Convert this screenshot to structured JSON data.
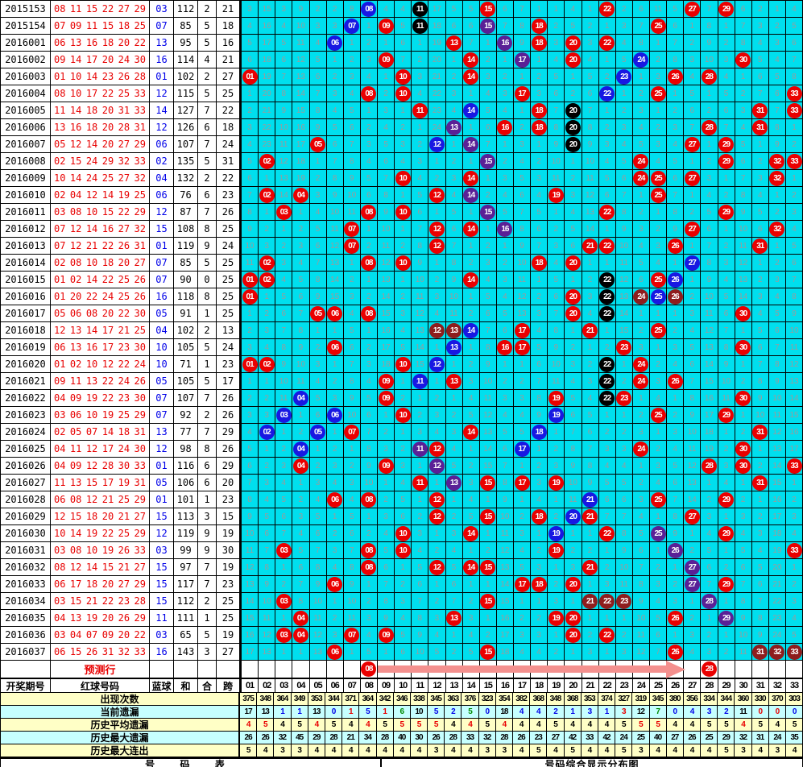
{
  "left_header": {
    "period": "开奖期号",
    "reds": "红球号码",
    "blue": "蓝球",
    "sum": "和",
    "he": "合",
    "span": "跨"
  },
  "columns": [
    "01",
    "02",
    "03",
    "04",
    "05",
    "06",
    "07",
    "08",
    "09",
    "10",
    "11",
    "12",
    "13",
    "14",
    "15",
    "16",
    "17",
    "18",
    "19",
    "20",
    "21",
    "22",
    "23",
    "24",
    "25",
    "26",
    "27",
    "28",
    "29",
    "30",
    "31",
    "32",
    "33"
  ],
  "ball_colors": {
    "red": "#ea0000",
    "blue": "#1818e2",
    "black": "#000000",
    "purple": "#5a2096",
    "maroon": "#8e1d1d"
  },
  "grid_bg": "#00dfee",
  "seed_omissions": [
    3,
    15,
    3,
    9,
    2,
    2,
    8,
    0,
    4,
    4,
    0,
    17,
    5,
    5,
    0,
    6,
    7,
    1,
    1,
    4,
    1,
    0,
    2,
    6,
    11,
    5,
    0,
    7,
    0,
    6,
    2,
    1,
    4
  ],
  "rows": [
    {
      "p": "2015153",
      "r": [
        "08",
        "11",
        "15",
        "22",
        "27",
        "29"
      ],
      "b": "03",
      "s": "112",
      "h": "2",
      "k": "21",
      "sp": {
        "08": "blue",
        "11": "black"
      }
    },
    {
      "p": "2015154",
      "r": [
        "07",
        "09",
        "11",
        "15",
        "18",
        "25"
      ],
      "b": "07",
      "s": "85",
      "h": "5",
      "k": "18",
      "sp": {
        "07": "blue",
        "11": "black",
        "15": "purple"
      }
    },
    {
      "p": "2016001",
      "r": [
        "06",
        "13",
        "16",
        "18",
        "20",
        "22"
      ],
      "b": "13",
      "s": "95",
      "h": "5",
      "k": "16",
      "sp": {
        "06": "blue",
        "16": "purple"
      }
    },
    {
      "p": "2016002",
      "r": [
        "09",
        "14",
        "17",
        "20",
        "24",
        "30"
      ],
      "b": "16",
      "s": "114",
      "h": "4",
      "k": "21",
      "sp": {
        "17": "purple",
        "24": "blue"
      }
    },
    {
      "p": "2016003",
      "r": [
        "01",
        "10",
        "14",
        "23",
        "26",
        "28"
      ],
      "b": "01",
      "s": "102",
      "h": "2",
      "k": "27",
      "sp": {
        "23": "blue"
      }
    },
    {
      "p": "2016004",
      "r": [
        "08",
        "10",
        "17",
        "22",
        "25",
        "33"
      ],
      "b": "12",
      "s": "115",
      "h": "5",
      "k": "25",
      "sp": {
        "22": "blue"
      }
    },
    {
      "p": "2016005",
      "r": [
        "11",
        "14",
        "18",
        "20",
        "31",
        "33"
      ],
      "b": "14",
      "s": "127",
      "h": "7",
      "k": "22",
      "sp": {
        "14": "blue",
        "20": "black"
      }
    },
    {
      "p": "2016006",
      "r": [
        "13",
        "16",
        "18",
        "20",
        "28",
        "31"
      ],
      "b": "12",
      "s": "126",
      "h": "6",
      "k": "18",
      "sp": {
        "13": "purple",
        "20": "black"
      }
    },
    {
      "p": "2016007",
      "r": [
        "05",
        "12",
        "14",
        "20",
        "27",
        "29"
      ],
      "b": "06",
      "s": "107",
      "h": "7",
      "k": "24",
      "sp": {
        "12": "blue",
        "14": "purple",
        "20": "black"
      }
    },
    {
      "p": "2016008",
      "r": [
        "02",
        "15",
        "24",
        "29",
        "32",
        "33"
      ],
      "b": "02",
      "s": "135",
      "h": "5",
      "k": "31",
      "sp": {
        "15": "purple"
      }
    },
    {
      "p": "2016009",
      "r": [
        "10",
        "14",
        "24",
        "25",
        "27",
        "32"
      ],
      "b": "04",
      "s": "132",
      "h": "2",
      "k": "22",
      "sp": {}
    },
    {
      "p": "2016010",
      "r": [
        "02",
        "04",
        "12",
        "14",
        "19",
        "25"
      ],
      "b": "06",
      "s": "76",
      "h": "6",
      "k": "23",
      "sp": {
        "14": "purple"
      }
    },
    {
      "p": "2016011",
      "r": [
        "03",
        "08",
        "10",
        "15",
        "22",
        "29"
      ],
      "b": "12",
      "s": "87",
      "h": "7",
      "k": "26",
      "sp": {
        "15": "purple"
      }
    },
    {
      "p": "2016012",
      "r": [
        "07",
        "12",
        "14",
        "16",
        "27",
        "32"
      ],
      "b": "15",
      "s": "108",
      "h": "8",
      "k": "25",
      "sp": {
        "16": "purple"
      }
    },
    {
      "p": "2016013",
      "r": [
        "07",
        "12",
        "21",
        "22",
        "26",
        "31"
      ],
      "b": "01",
      "s": "119",
      "h": "9",
      "k": "24",
      "sp": {}
    },
    {
      "p": "2016014",
      "r": [
        "02",
        "08",
        "10",
        "18",
        "20",
        "27"
      ],
      "b": "07",
      "s": "85",
      "h": "5",
      "k": "25",
      "sp": {
        "27": "blue"
      }
    },
    {
      "p": "2016015",
      "r": [
        "01",
        "02",
        "14",
        "22",
        "25",
        "26"
      ],
      "b": "07",
      "s": "90",
      "h": "0",
      "k": "25",
      "sp": {
        "22": "black",
        "26": "blue"
      }
    },
    {
      "p": "2016016",
      "r": [
        "01",
        "20",
        "22",
        "24",
        "25",
        "26"
      ],
      "b": "16",
      "s": "118",
      "h": "8",
      "k": "25",
      "sp": {
        "22": "black",
        "24": "maroon",
        "25": "blue",
        "26": "maroon"
      }
    },
    {
      "p": "2016017",
      "r": [
        "05",
        "06",
        "08",
        "20",
        "22",
        "30"
      ],
      "b": "05",
      "s": "91",
      "h": "1",
      "k": "25",
      "sp": {
        "22": "black"
      }
    },
    {
      "p": "2016018",
      "r": [
        "12",
        "13",
        "14",
        "17",
        "21",
        "25"
      ],
      "b": "04",
      "s": "102",
      "h": "2",
      "k": "13",
      "sp": {
        "12": "maroon",
        "13": "maroon",
        "14": "blue"
      }
    },
    {
      "p": "2016019",
      "r": [
        "06",
        "13",
        "16",
        "17",
        "23",
        "30"
      ],
      "b": "10",
      "s": "105",
      "h": "5",
      "k": "24",
      "sp": {
        "13": "blue"
      }
    },
    {
      "p": "2016020",
      "r": [
        "01",
        "02",
        "10",
        "12",
        "22",
        "24"
      ],
      "b": "10",
      "s": "71",
      "h": "1",
      "k": "23",
      "sp": {
        "12": "blue",
        "22": "black"
      }
    },
    {
      "p": "2016021",
      "r": [
        "09",
        "11",
        "13",
        "22",
        "24",
        "26"
      ],
      "b": "05",
      "s": "105",
      "h": "5",
      "k": "17",
      "sp": {
        "11": "blue",
        "22": "black"
      }
    },
    {
      "p": "2016022",
      "r": [
        "04",
        "09",
        "19",
        "22",
        "23",
        "30"
      ],
      "b": "07",
      "s": "107",
      "h": "7",
      "k": "26",
      "sp": {
        "04": "blue",
        "22": "black"
      }
    },
    {
      "p": "2016023",
      "r": [
        "03",
        "06",
        "10",
        "19",
        "25",
        "29"
      ],
      "b": "07",
      "s": "92",
      "h": "2",
      "k": "26",
      "sp": {
        "03": "blue",
        "06": "blue",
        "19": "blue"
      }
    },
    {
      "p": "2016024",
      "r": [
        "02",
        "05",
        "07",
        "14",
        "18",
        "31"
      ],
      "b": "13",
      "s": "77",
      "h": "7",
      "k": "29",
      "sp": {
        "02": "blue",
        "05": "blue",
        "18": "blue"
      }
    },
    {
      "p": "2016025",
      "r": [
        "04",
        "11",
        "12",
        "17",
        "24",
        "30"
      ],
      "b": "12",
      "s": "98",
      "h": "8",
      "k": "26",
      "sp": {
        "04": "blue",
        "11": "purple",
        "17": "blue"
      }
    },
    {
      "p": "2016026",
      "r": [
        "04",
        "09",
        "12",
        "28",
        "30",
        "33"
      ],
      "b": "01",
      "s": "116",
      "h": "6",
      "k": "29",
      "sp": {
        "12": "purple"
      }
    },
    {
      "p": "2016027",
      "r": [
        "11",
        "13",
        "15",
        "17",
        "19",
        "31"
      ],
      "b": "05",
      "s": "106",
      "h": "6",
      "k": "20",
      "sp": {
        "13": "purple"
      }
    },
    {
      "p": "2016028",
      "r": [
        "06",
        "08",
        "12",
        "21",
        "25",
        "29"
      ],
      "b": "01",
      "s": "101",
      "h": "1",
      "k": "23",
      "sp": {
        "21": "blue"
      }
    },
    {
      "p": "2016029",
      "r": [
        "12",
        "15",
        "18",
        "20",
        "21",
        "27"
      ],
      "b": "15",
      "s": "113",
      "h": "3",
      "k": "15",
      "sp": {
        "20": "blue"
      }
    },
    {
      "p": "2016030",
      "r": [
        "10",
        "14",
        "19",
        "22",
        "25",
        "29"
      ],
      "b": "12",
      "s": "119",
      "h": "9",
      "k": "19",
      "sp": {
        "19": "blue",
        "25": "purple"
      }
    },
    {
      "p": "2016031",
      "r": [
        "03",
        "08",
        "10",
        "19",
        "26",
        "33"
      ],
      "b": "03",
      "s": "99",
      "h": "9",
      "k": "30",
      "sp": {
        "26": "purple"
      }
    },
    {
      "p": "2016032",
      "r": [
        "08",
        "12",
        "14",
        "15",
        "21",
        "27"
      ],
      "b": "15",
      "s": "97",
      "h": "7",
      "k": "19",
      "sp": {
        "27": "purple"
      }
    },
    {
      "p": "2016033",
      "r": [
        "06",
        "17",
        "18",
        "20",
        "27",
        "29"
      ],
      "b": "15",
      "s": "117",
      "h": "7",
      "k": "23",
      "sp": {
        "27": "purple"
      }
    },
    {
      "p": "2016034",
      "r": [
        "03",
        "15",
        "21",
        "22",
        "23",
        "28"
      ],
      "b": "15",
      "s": "112",
      "h": "2",
      "k": "25",
      "sp": {
        "21": "maroon",
        "22": "maroon",
        "23": "maroon",
        "28": "purple"
      }
    },
    {
      "p": "2016035",
      "r": [
        "04",
        "13",
        "19",
        "20",
        "26",
        "29"
      ],
      "b": "11",
      "s": "111",
      "h": "1",
      "k": "25",
      "sp": {
        "29": "purple"
      }
    },
    {
      "p": "2016036",
      "r": [
        "03",
        "04",
        "07",
        "09",
        "20",
        "22"
      ],
      "b": "03",
      "s": "65",
      "h": "5",
      "k": "19",
      "sp": {}
    },
    {
      "p": "2016037",
      "r": [
        "06",
        "15",
        "26",
        "31",
        "32",
        "33"
      ],
      "b": "16",
      "s": "143",
      "h": "3",
      "k": "27",
      "sp": {
        "31": "maroon",
        "32": "maroon",
        "33": "maroon"
      }
    }
  ],
  "prediction": {
    "label": "预测行",
    "balls": [
      {
        "num": "08",
        "col": 8,
        "color": "red"
      },
      {
        "num": "28",
        "col": 28,
        "color": "red"
      }
    ]
  },
  "stats": [
    {
      "label": "出现次数",
      "bg": "y",
      "values": [
        "375",
        "348",
        "364",
        "349",
        "353",
        "344",
        "371",
        "364",
        "342",
        "346",
        "338",
        "345",
        "363",
        "376",
        "323",
        "354",
        "382",
        "368",
        "348",
        "368",
        "353",
        "374",
        "327",
        "319",
        "345",
        "380",
        "356",
        "334",
        "344",
        "360",
        "330",
        "370",
        "303"
      ],
      "colors": [
        "k",
        "k",
        "k",
        "k",
        "k",
        "k",
        "k",
        "k",
        "k",
        "k",
        "k",
        "k",
        "k",
        "k",
        "k",
        "k",
        "k",
        "k",
        "k",
        "k",
        "k",
        "k",
        "k",
        "k",
        "k",
        "k",
        "k",
        "k",
        "k",
        "k",
        "k",
        "k",
        "k"
      ]
    },
    {
      "label": "当前遗漏",
      "bg": "c",
      "values": [
        "17",
        "13",
        "1",
        "1",
        "13",
        "0",
        "1",
        "5",
        "1",
        "6",
        "10",
        "5",
        "2",
        "5",
        "0",
        "18",
        "4",
        "4",
        "2",
        "1",
        "3",
        "1",
        "3",
        "12",
        "7",
        "0",
        "4",
        "3",
        "2",
        "11",
        "0",
        "0",
        "0"
      ],
      "colors": [
        "k",
        "k",
        "b",
        "b",
        "k",
        "b",
        "r",
        "b",
        "r",
        "g",
        "k",
        "b",
        "b",
        "g",
        "b",
        "k",
        "b",
        "b",
        "b",
        "b",
        "b",
        "b",
        "r",
        "k",
        "g",
        "b",
        "b",
        "b",
        "b",
        "k",
        "r",
        "r",
        "b"
      ]
    },
    {
      "label": "历史平均遗漏",
      "bg": "y",
      "values": [
        "4",
        "5",
        "4",
        "5",
        "4",
        "5",
        "4",
        "4",
        "5",
        "5",
        "5",
        "5",
        "4",
        "4",
        "5",
        "4",
        "4",
        "4",
        "5",
        "4",
        "4",
        "4",
        "5",
        "5",
        "5",
        "4",
        "4",
        "5",
        "5",
        "4",
        "5",
        "4",
        "5"
      ],
      "colors": [
        "r",
        "r",
        "k",
        "k",
        "r",
        "k",
        "k",
        "r",
        "k",
        "r",
        "r",
        "r",
        "k",
        "r",
        "k",
        "r",
        "k",
        "k",
        "k",
        "k",
        "k",
        "k",
        "k",
        "r",
        "r",
        "k",
        "k",
        "k",
        "k",
        "r",
        "k",
        "k",
        "k"
      ]
    },
    {
      "label": "历史最大遗漏",
      "bg": "c",
      "values": [
        "26",
        "26",
        "32",
        "45",
        "29",
        "28",
        "21",
        "34",
        "28",
        "40",
        "30",
        "26",
        "28",
        "33",
        "32",
        "28",
        "26",
        "23",
        "27",
        "42",
        "33",
        "42",
        "24",
        "25",
        "40",
        "27",
        "26",
        "25",
        "29",
        "32",
        "31",
        "24",
        "35"
      ],
      "colors": [
        "k",
        "k",
        "k",
        "k",
        "k",
        "k",
        "k",
        "k",
        "k",
        "k",
        "k",
        "k",
        "k",
        "k",
        "k",
        "k",
        "k",
        "k",
        "k",
        "k",
        "k",
        "k",
        "k",
        "k",
        "k",
        "k",
        "k",
        "k",
        "k",
        "k",
        "k",
        "k",
        "k"
      ]
    },
    {
      "label": "历史最大连出",
      "bg": "y",
      "values": [
        "5",
        "4",
        "3",
        "3",
        "4",
        "4",
        "4",
        "4",
        "4",
        "4",
        "4",
        "3",
        "4",
        "4",
        "3",
        "3",
        "4",
        "5",
        "4",
        "5",
        "4",
        "4",
        "5",
        "3",
        "4",
        "4",
        "4",
        "4",
        "5",
        "3",
        "4",
        "3",
        "4"
      ],
      "colors": [
        "k",
        "k",
        "k",
        "k",
        "k",
        "k",
        "k",
        "k",
        "k",
        "k",
        "k",
        "k",
        "k",
        "k",
        "k",
        "k",
        "k",
        "k",
        "k",
        "k",
        "k",
        "k",
        "k",
        "k",
        "k",
        "k",
        "k",
        "k",
        "k",
        "k",
        "k",
        "k",
        "k"
      ]
    }
  ],
  "footer": {
    "left": "号 码 表",
    "right": "号码综合显示分布图"
  },
  "text_colors": {
    "k": "#000000",
    "r": "#e80000",
    "b": "#0000e8",
    "g": "#008a00"
  }
}
